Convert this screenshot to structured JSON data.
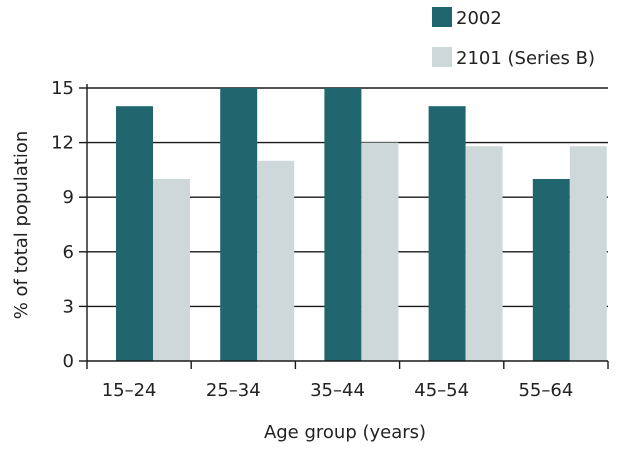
{
  "chart_data": {
    "type": "bar",
    "title": "",
    "xlabel": "Age group (years)",
    "ylabel": "% of total population",
    "categories": [
      "15–24",
      "25–34",
      "35–44",
      "45–54",
      "55–64"
    ],
    "series": [
      {
        "name": "2002",
        "values": [
          14,
          15,
          15,
          14,
          10
        ],
        "color": "#21666f"
      },
      {
        "name": "2101 (Series B)",
        "values": [
          10,
          11,
          12,
          11.8,
          11.8
        ],
        "color": "#cfd8d8"
      }
    ],
    "ylim": [
      0,
      15
    ],
    "yticks": [
      "0",
      "3",
      "6",
      "9",
      "12",
      "15"
    ],
    "grid": true,
    "legend_position": "top-right",
    "gridline_color": "#1a1a1a"
  }
}
